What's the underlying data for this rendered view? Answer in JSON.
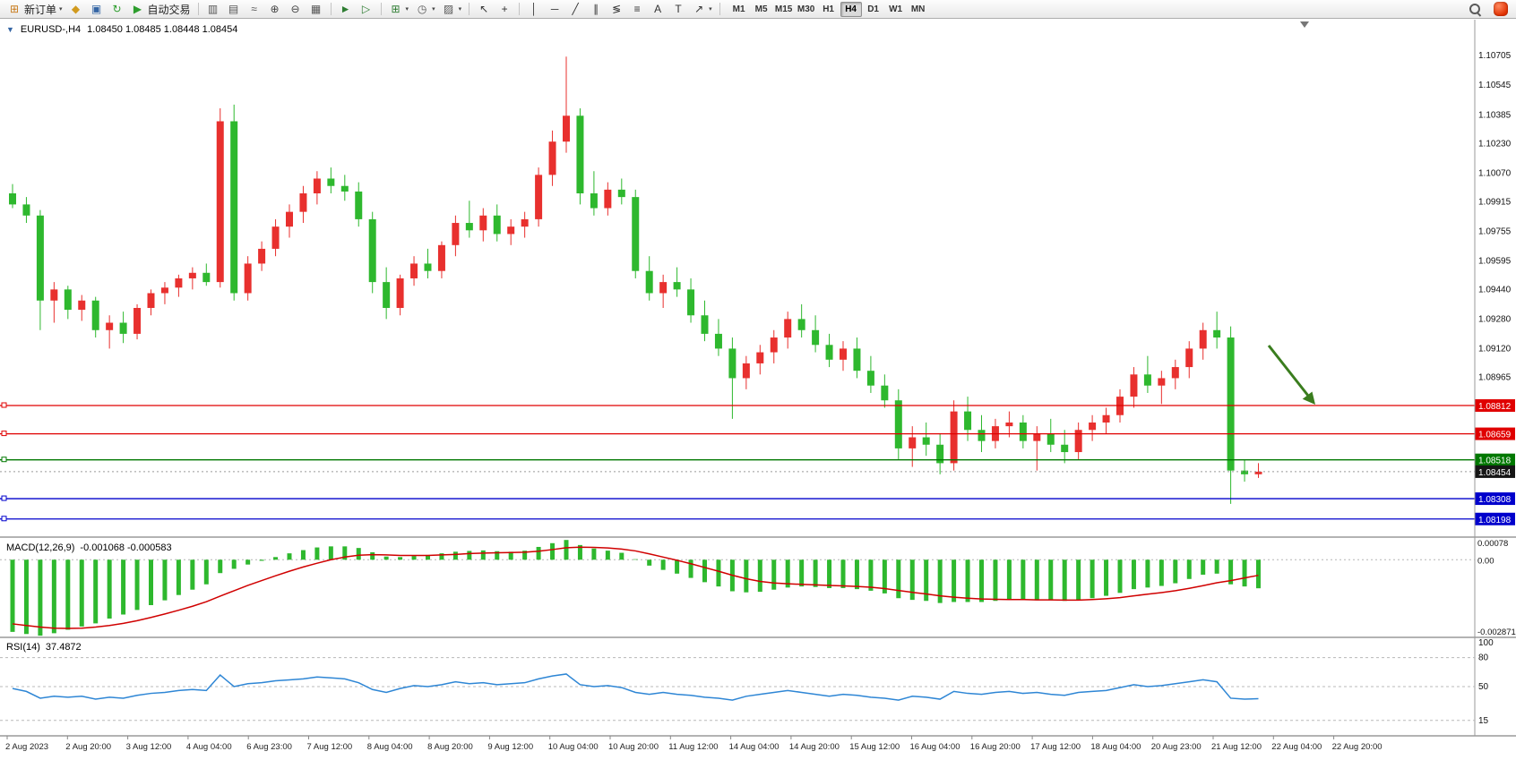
{
  "toolbar": {
    "items": [
      {
        "name": "new-order-button",
        "icon": "new-order-icon",
        "type": "button",
        "glyph": "⊞",
        "color": "#c87a1a",
        "label": "新订单",
        "caret": true
      },
      {
        "name": "market-watch-button",
        "icon": "market-watch-icon",
        "type": "icon",
        "glyph": "◆",
        "color": "#d19a1e"
      },
      {
        "name": "data-window-button",
        "icon": "data-window-icon",
        "type": "icon",
        "glyph": "▣",
        "color": "#3465a4"
      },
      {
        "name": "refresh-button",
        "icon": "refresh-icon",
        "type": "icon",
        "glyph": "↻",
        "color": "#2e9e2e"
      },
      {
        "name": "autotrading-button",
        "icon": "autotrading-icon",
        "type": "button",
        "glyph": "▶",
        "color": "#2e9e2e",
        "label": "自动交易"
      },
      {
        "type": "sep"
      },
      {
        "name": "bar-chart-button",
        "icon": "bar-chart-icon",
        "type": "icon",
        "glyph": "▥",
        "color": "#555555"
      },
      {
        "name": "candlestick-chart-button",
        "icon": "candlestick-chart-icon",
        "type": "icon",
        "glyph": "▤",
        "color": "#555555"
      },
      {
        "name": "line-chart-button",
        "icon": "line-chart-icon",
        "type": "icon",
        "glyph": "≈",
        "color": "#555555"
      },
      {
        "name": "zoom-in-button",
        "icon": "zoom-in-icon",
        "type": "icon",
        "glyph": "⊕",
        "color": "#444444"
      },
      {
        "name": "zoom-out-button",
        "icon": "zoom-out-icon",
        "type": "icon",
        "glyph": "⊖",
        "color": "#444444"
      },
      {
        "name": "tile-windows-button",
        "icon": "tile-windows-icon",
        "type": "icon",
        "glyph": "▦",
        "color": "#555555"
      },
      {
        "type": "sep"
      },
      {
        "name": "auto-scroll-button",
        "icon": "auto-scroll-icon",
        "type": "icon",
        "glyph": "►",
        "color": "#2e7d32"
      },
      {
        "name": "chart-shift-button",
        "icon": "chart-shift-icon",
        "type": "icon",
        "glyph": "▷",
        "color": "#2e7d32"
      },
      {
        "type": "sep"
      },
      {
        "name": "add-indicator-button",
        "icon": "add-indicator-icon",
        "type": "icon",
        "glyph": "⊞",
        "color": "#2e7d32",
        "caret": true
      },
      {
        "name": "period-button",
        "icon": "clock-icon",
        "type": "icon",
        "glyph": "◷",
        "color": "#555555",
        "caret": true
      },
      {
        "name": "template-button",
        "icon": "template-icon",
        "type": "icon",
        "glyph": "▨",
        "color": "#555555",
        "caret": true
      },
      {
        "type": "sep"
      },
      {
        "name": "cursor-button",
        "icon": "cursor-icon",
        "type": "icon",
        "glyph": "↖",
        "color": "#333333"
      },
      {
        "name": "crosshair-button",
        "icon": "crosshair-icon",
        "type": "icon",
        "glyph": "+",
        "color": "#333333"
      },
      {
        "type": "sep"
      },
      {
        "name": "vertical-line-button",
        "icon": "vertical-line-icon",
        "type": "icon",
        "glyph": "│",
        "color": "#333333"
      },
      {
        "name": "horizontal-line-button",
        "icon": "horizontal-line-icon",
        "type": "icon",
        "glyph": "─",
        "color": "#333333"
      },
      {
        "name": "trendline-button",
        "icon": "trendline-icon",
        "type": "icon",
        "glyph": "╱",
        "color": "#333333"
      },
      {
        "name": "channel-button",
        "icon": "channel-icon",
        "type": "icon",
        "glyph": "∥",
        "color": "#333333"
      },
      {
        "name": "fibonacci-button",
        "icon": "fibonacci-icon",
        "type": "icon",
        "glyph": "≶",
        "color": "#333333"
      },
      {
        "name": "shapes-button",
        "icon": "shapes-icon",
        "type": "icon",
        "glyph": "≡",
        "color": "#333333"
      },
      {
        "name": "text-button",
        "icon": "text-icon",
        "type": "icon",
        "glyph": "A",
        "color": "#333333"
      },
      {
        "name": "text-label-button",
        "icon": "text-label-icon",
        "type": "icon",
        "glyph": "T",
        "color": "#333333"
      },
      {
        "name": "arrows-button",
        "icon": "arrow-tools-icon",
        "type": "icon",
        "glyph": "↗",
        "color": "#333333",
        "caret": true
      },
      {
        "type": "sep"
      }
    ],
    "timeframes": [
      "M1",
      "M5",
      "M15",
      "M30",
      "H1",
      "H4",
      "D1",
      "W1",
      "MN"
    ],
    "active_timeframe": "H4"
  },
  "chart": {
    "symbol": "EURUSD-,H4",
    "ohlc_text": "1.08450 1.08485 1.08448 1.08454",
    "colors": {
      "up": "#e8302e",
      "down": "#2eb82e",
      "macd_hist": "#2eb82e",
      "signal": "#d00000",
      "rsi": "#2e86d5",
      "arrow": "#3a7d1e"
    },
    "price_axis_labels": [
      "1.10705",
      "1.10545",
      "1.10385",
      "1.10230",
      "1.10070",
      "1.09915",
      "1.09755",
      "1.09595",
      "1.09440",
      "1.09280",
      "1.09120",
      "1.08965"
    ],
    "hlines": [
      {
        "label": "1.08812",
        "price": 1.08812,
        "color": "#e00000"
      },
      {
        "label": "1.08659",
        "price": 1.08659,
        "color": "#e00000"
      },
      {
        "label": "1.08518",
        "price": 1.08518,
        "color": "#007800"
      },
      {
        "label": "1.08308",
        "price": 1.08308,
        "color": "#0000cc"
      },
      {
        "label": "1.08198",
        "price": 1.08198,
        "color": "#0000cc"
      }
    ],
    "current_price": {
      "label": "1.08454",
      "price": 1.08454,
      "tag_color": "#161616"
    },
    "macd": {
      "label": "MACD(12,26,9)",
      "values_text": "-0.001068 -0.000583",
      "axis_labels": [
        "0.00078",
        "0.00",
        "-0.002871"
      ]
    },
    "rsi": {
      "label": "RSI(14)",
      "value_text": "37.4872",
      "axis_labels": [
        "100",
        "80",
        "50",
        "15"
      ],
      "levels": [
        80,
        50,
        15
      ]
    },
    "time_axis_labels": [
      "2 Aug 2023",
      "2 Aug 20:00",
      "3 Aug 12:00",
      "4 Aug 04:00",
      "6 Aug 23:00",
      "7 Aug 12:00",
      "8 Aug 04:00",
      "8 Aug 20:00",
      "9 Aug 12:00",
      "10 Aug 04:00",
      "10 Aug 20:00",
      "11 Aug 12:00",
      "14 Aug 04:00",
      "14 Aug 20:00",
      "15 Aug 12:00",
      "16 Aug 04:00",
      "16 Aug 20:00",
      "17 Aug 12:00",
      "18 Aug 04:00",
      "20 Aug 23:00",
      "21 Aug 12:00",
      "22 Aug 04:00",
      "22 Aug 20:00"
    ]
  },
  "chart_data": {
    "type": "candlestick",
    "symbol": "EURUSD",
    "timeframe": "H4",
    "y_range": [
      1.081,
      1.1089
    ],
    "macd_range": [
      -0.002871,
      0.00078
    ],
    "rsi_range": [
      0,
      100
    ],
    "candles_ohlc": [
      [
        1.0996,
        1.1001,
        1.0988,
        1.099
      ],
      [
        1.099,
        1.0994,
        1.098,
        1.0984
      ],
      [
        1.0984,
        1.0987,
        1.0922,
        1.0938
      ],
      [
        1.0938,
        1.0948,
        1.0926,
        1.0944
      ],
      [
        1.0944,
        1.0946,
        1.0928,
        1.0933
      ],
      [
        1.0933,
        1.0941,
        1.0927,
        1.0938
      ],
      [
        1.0938,
        1.094,
        1.0918,
        1.0922
      ],
      [
        1.0922,
        1.093,
        1.0912,
        1.0926
      ],
      [
        1.0926,
        1.0932,
        1.0915,
        1.092
      ],
      [
        1.092,
        1.0936,
        1.0917,
        1.0934
      ],
      [
        1.0934,
        1.0944,
        1.093,
        1.0942
      ],
      [
        1.0942,
        1.0948,
        1.0936,
        1.0945
      ],
      [
        1.0945,
        1.0952,
        1.094,
        1.095
      ],
      [
        1.095,
        1.0956,
        1.0944,
        1.0953
      ],
      [
        1.0953,
        1.0958,
        1.0946,
        1.0948
      ],
      [
        1.0948,
        1.1042,
        1.0945,
        1.1035
      ],
      [
        1.1035,
        1.1044,
        1.0938,
        1.0942
      ],
      [
        1.0942,
        1.0962,
        1.0938,
        1.0958
      ],
      [
        1.0958,
        1.097,
        1.0954,
        1.0966
      ],
      [
        1.0966,
        1.0982,
        1.0962,
        1.0978
      ],
      [
        1.0978,
        1.099,
        1.0972,
        1.0986
      ],
      [
        1.0986,
        1.1,
        1.098,
        1.0996
      ],
      [
        1.0996,
        1.1008,
        1.099,
        1.1004
      ],
      [
        1.1004,
        1.101,
        1.0996,
        1.1
      ],
      [
        1.1,
        1.1006,
        1.0992,
        1.0997
      ],
      [
        1.0997,
        1.1002,
        1.0978,
        1.0982
      ],
      [
        1.0982,
        1.0986,
        1.0942,
        1.0948
      ],
      [
        1.0948,
        1.0956,
        1.0928,
        1.0934
      ],
      [
        1.0934,
        1.0952,
        1.093,
        1.095
      ],
      [
        1.095,
        1.0962,
        1.0946,
        1.0958
      ],
      [
        1.0958,
        1.0966,
        1.095,
        1.0954
      ],
      [
        1.0954,
        1.097,
        1.095,
        1.0968
      ],
      [
        1.0968,
        1.0984,
        1.0962,
        1.098
      ],
      [
        1.098,
        1.0992,
        1.0972,
        1.0976
      ],
      [
        1.0976,
        1.0988,
        1.097,
        1.0984
      ],
      [
        1.0984,
        1.099,
        1.097,
        1.0974
      ],
      [
        1.0974,
        1.0982,
        1.0968,
        1.0978
      ],
      [
        1.0978,
        1.0986,
        1.0972,
        1.0982
      ],
      [
        1.0982,
        1.101,
        1.0978,
        1.1006
      ],
      [
        1.1006,
        1.103,
        1.1,
        1.1024
      ],
      [
        1.1024,
        1.107,
        1.1018,
        1.1038
      ],
      [
        1.1038,
        1.1042,
        1.099,
        1.0996
      ],
      [
        1.0996,
        1.1008,
        1.0984,
        1.0988
      ],
      [
        1.0988,
        1.1002,
        1.0984,
        1.0998
      ],
      [
        1.0998,
        1.1004,
        1.099,
        1.0994
      ],
      [
        1.0994,
        1.0998,
        1.095,
        1.0954
      ],
      [
        1.0954,
        1.0962,
        1.0938,
        1.0942
      ],
      [
        1.0942,
        1.0952,
        1.0934,
        1.0948
      ],
      [
        1.0948,
        1.0956,
        1.094,
        1.0944
      ],
      [
        1.0944,
        1.095,
        1.0926,
        1.093
      ],
      [
        1.093,
        1.0938,
        1.0916,
        1.092
      ],
      [
        1.092,
        1.0928,
        1.0908,
        1.0912
      ],
      [
        1.0912,
        1.0918,
        1.0874,
        1.0896
      ],
      [
        1.0896,
        1.0908,
        1.089,
        1.0904
      ],
      [
        1.0904,
        1.0914,
        1.0898,
        1.091
      ],
      [
        1.091,
        1.0922,
        1.0904,
        1.0918
      ],
      [
        1.0918,
        1.0932,
        1.0912,
        1.0928
      ],
      [
        1.0928,
        1.0936,
        1.0918,
        1.0922
      ],
      [
        1.0922,
        1.093,
        1.091,
        1.0914
      ],
      [
        1.0914,
        1.092,
        1.0902,
        1.0906
      ],
      [
        1.0906,
        1.0916,
        1.09,
        1.0912
      ],
      [
        1.0912,
        1.0918,
        1.0896,
        1.09
      ],
      [
        1.09,
        1.0908,
        1.0888,
        1.0892
      ],
      [
        1.0892,
        1.0898,
        1.088,
        1.0884
      ],
      [
        1.0884,
        1.089,
        1.0852,
        1.0858
      ],
      [
        1.0858,
        1.087,
        1.0848,
        1.0864
      ],
      [
        1.0864,
        1.0872,
        1.0854,
        1.086
      ],
      [
        1.086,
        1.0866,
        1.0844,
        1.085
      ],
      [
        1.085,
        1.0884,
        1.0846,
        1.0878
      ],
      [
        1.0878,
        1.0886,
        1.0862,
        1.0868
      ],
      [
        1.0868,
        1.0876,
        1.0856,
        1.0862
      ],
      [
        1.0862,
        1.0874,
        1.0858,
        1.087
      ],
      [
        1.087,
        1.0878,
        1.0864,
        1.0872
      ],
      [
        1.0872,
        1.0876,
        1.0858,
        1.0862
      ],
      [
        1.0862,
        1.087,
        1.0846,
        1.0866
      ],
      [
        1.0866,
        1.0874,
        1.0856,
        1.086
      ],
      [
        1.086,
        1.0868,
        1.085,
        1.0856
      ],
      [
        1.0856,
        1.0872,
        1.0852,
        1.0868
      ],
      [
        1.0868,
        1.0876,
        1.0862,
        1.0872
      ],
      [
        1.0872,
        1.088,
        1.0866,
        1.0876
      ],
      [
        1.0876,
        1.089,
        1.0872,
        1.0886
      ],
      [
        1.0886,
        1.0902,
        1.088,
        1.0898
      ],
      [
        1.0898,
        1.0908,
        1.0888,
        1.0892
      ],
      [
        1.0892,
        1.09,
        1.0882,
        1.0896
      ],
      [
        1.0896,
        1.0906,
        1.089,
        1.0902
      ],
      [
        1.0902,
        1.0916,
        1.0896,
        1.0912
      ],
      [
        1.0912,
        1.0926,
        1.0906,
        1.0922
      ],
      [
        1.0922,
        1.0932,
        1.0912,
        1.0918
      ],
      [
        1.0918,
        1.0924,
        1.0828,
        1.0846
      ],
      [
        1.0846,
        1.0852,
        1.084,
        1.0844
      ],
      [
        1.0844,
        1.085,
        1.0842,
        1.08454
      ]
    ],
    "macd_main": [
      -0.0027,
      -0.00278,
      -0.00284,
      -0.00275,
      -0.00262,
      -0.0025,
      -0.00238,
      -0.0022,
      -0.00205,
      -0.00188,
      -0.0017,
      -0.00152,
      -0.00132,
      -0.00112,
      -0.00092,
      -0.0005,
      -0.00034,
      -0.00018,
      -4e-05,
      0.0001,
      0.00024,
      0.00036,
      0.00046,
      0.0005,
      0.0005,
      0.00044,
      0.00028,
      0.00012,
      0.0001,
      0.00014,
      0.00018,
      0.00024,
      0.0003,
      0.00033,
      0.00035,
      0.00032,
      0.0003,
      0.00034,
      0.00048,
      0.00062,
      0.00074,
      0.00055,
      0.00042,
      0.00034,
      0.00026,
      2e-05,
      -0.00022,
      -0.00038,
      -0.00052,
      -0.00068,
      -0.00084,
      -0.001,
      -0.00118,
      -0.00122,
      -0.0012,
      -0.00112,
      -0.00104,
      -0.001,
      -0.00102,
      -0.00106,
      -0.00106,
      -0.0011,
      -0.00116,
      -0.00126,
      -0.00144,
      -0.0015,
      -0.00154,
      -0.00162,
      -0.00158,
      -0.00158,
      -0.00158,
      -0.00154,
      -0.0015,
      -0.0015,
      -0.00152,
      -0.00152,
      -0.00154,
      -0.0015,
      -0.00144,
      -0.00135,
      -0.00124,
      -0.0011,
      -0.00104,
      -0.00098,
      -0.00088,
      -0.00072,
      -0.00056,
      -0.00052,
      -0.00092,
      -0.001,
      -0.001068
    ],
    "macd_signal": [
      -0.0024,
      -0.00246,
      -0.00252,
      -0.00256,
      -0.00257,
      -0.00256,
      -0.00252,
      -0.00246,
      -0.00238,
      -0.00228,
      -0.00216,
      -0.00203,
      -0.00189,
      -0.00174,
      -0.00157,
      -0.00136,
      -0.00116,
      -0.00096,
      -0.00078,
      -0.0006,
      -0.00043,
      -0.00027,
      -0.00013,
      0.0,
      0.0001,
      0.00017,
      0.00019,
      0.00018,
      0.00016,
      0.00016,
      0.00016,
      0.00018,
      0.0002,
      0.00023,
      0.00025,
      0.00026,
      0.00027,
      0.00028,
      0.00032,
      0.00038,
      0.00045,
      0.00047,
      0.00046,
      0.00044,
      0.0004,
      0.00033,
      0.00022,
      0.0001,
      -2e-05,
      -0.00015,
      -0.00029,
      -0.00043,
      -0.00058,
      -0.00071,
      -0.00081,
      -0.00087,
      -0.0009,
      -0.00092,
      -0.00094,
      -0.00096,
      -0.00098,
      -0.001,
      -0.00103,
      -0.00108,
      -0.00115,
      -0.00122,
      -0.00128,
      -0.00135,
      -0.0014,
      -0.00144,
      -0.00147,
      -0.00148,
      -0.00149,
      -0.00149,
      -0.0015,
      -0.0015,
      -0.00151,
      -0.00151,
      -0.00149,
      -0.00146,
      -0.00142,
      -0.00135,
      -0.00129,
      -0.00123,
      -0.00116,
      -0.00107,
      -0.00097,
      -0.00086,
      -0.00078,
      -0.00068,
      -0.000583
    ],
    "rsi_values": [
      48,
      45,
      38,
      40,
      39,
      40,
      37,
      39,
      38,
      41,
      43,
      44,
      46,
      47,
      46,
      62,
      50,
      53,
      54,
      56,
      57,
      58,
      60,
      59,
      58,
      54,
      47,
      44,
      48,
      51,
      50,
      52,
      55,
      53,
      54,
      52,
      53,
      54,
      58,
      61,
      63,
      52,
      50,
      51,
      49,
      44,
      42,
      44,
      42,
      41,
      39,
      38,
      36,
      40,
      42,
      44,
      46,
      44,
      42,
      40,
      42,
      41,
      39,
      38,
      36,
      40,
      39,
      37,
      45,
      43,
      42,
      44,
      45,
      43,
      44,
      42,
      41,
      44,
      45,
      46,
      49,
      52,
      50,
      51,
      53,
      55,
      57,
      55,
      38,
      37,
      37.5
    ]
  }
}
